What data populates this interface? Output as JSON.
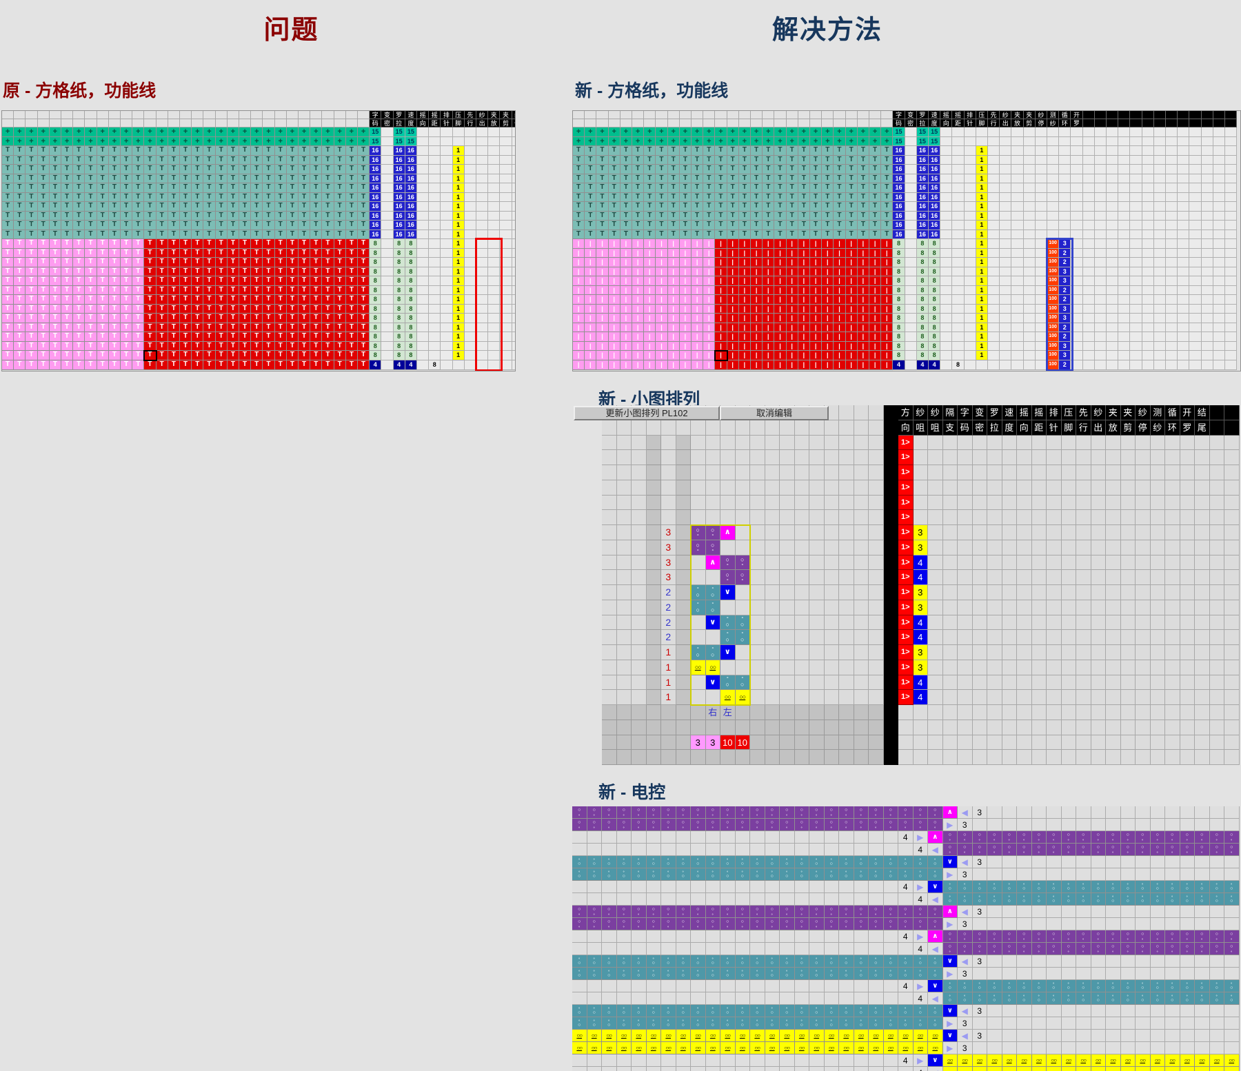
{
  "titles": {
    "problem": "问题",
    "solution": "解决方法"
  },
  "section_labels": {
    "old_grid": "原 - 方格纸，功能线",
    "new_grid": "新 - 方格纸，功能线",
    "arrange": "新 - 小图排列",
    "control": "新 - 电控"
  },
  "toolbar": {
    "update": "更新小图排列 PL102",
    "cancel": "取消编辑"
  },
  "func_headers": [
    "字码",
    "变密",
    "罗拉",
    "速度",
    "摇向",
    "摇距",
    "排针",
    "压脚",
    "先行",
    "纱出",
    "夹放",
    "夹剪",
    "纱停",
    "测纱",
    "循环",
    "开罗"
  ],
  "arrange_headers": [
    "方向",
    "纱咀",
    "纱咀",
    "隔支",
    "字码",
    "变密",
    "罗拉",
    "速度",
    "摇向",
    "摇距",
    "排针",
    "压脚",
    "先行",
    "纱出",
    "夹放",
    "夹剪",
    "纱停",
    "测纱",
    "循环",
    "开罗",
    "结尾"
  ],
  "grid_values": {
    "plus": "15",
    "knit": "16",
    "tuck": "8",
    "presser": "1",
    "last": "4",
    "measure": "8"
  },
  "symbols": {
    "plus": "+",
    "knit": "T",
    "bar": "|",
    "ring_big": "○",
    "ring_small": "∘",
    "tuck_up": "∧",
    "tuck_down": "∨",
    "yellow_pair": "○○",
    "tri_left": "◀",
    "tri_right": "▶"
  },
  "old_grid": {
    "pattern_cols": 31,
    "red_start_col": 13,
    "func_cols_visible": 13,
    "annotation_col": 10,
    "bottom_symbol": "T"
  },
  "new_grid": {
    "pattern_cols": 27,
    "red_start_col": 13,
    "func_cols_visible": 29,
    "annotation_col": 14,
    "bottom_symbol": "|",
    "loop_left": "100",
    "loop_right": [
      "3",
      "2",
      "2",
      "3",
      "3",
      "2",
      "2",
      "3",
      "3",
      "2",
      "2",
      "3",
      "3",
      "2"
    ]
  },
  "arrange": {
    "dir": "1>",
    "plain_dir_rows": 6,
    "yarn": [
      "3",
      "3",
      "4",
      "4",
      "3",
      "3",
      "4",
      "4",
      "3",
      "3",
      "4",
      "4"
    ],
    "row_labels": [
      "3",
      "3",
      "3",
      "3",
      "2",
      "2",
      "2",
      "2",
      "1",
      "1",
      "1",
      "1"
    ],
    "pattern": [
      "PPM.",
      "PP..",
      ".MPP",
      "..PP",
      "TTB.",
      "TT..",
      ".BTT",
      "..TT",
      "TTB.",
      "YY..",
      ".BTT",
      "..YY"
    ],
    "footer_right": "右",
    "footer_left": "左",
    "counts": [
      "3",
      "3",
      "10",
      "10"
    ]
  },
  "control": {
    "bands": [
      [
        "L",
        "P"
      ],
      [
        "R",
        "P"
      ],
      [
        "L",
        "T"
      ],
      [
        "R",
        "T"
      ],
      [
        "L",
        "P"
      ],
      [
        "R",
        "P"
      ],
      [
        "L",
        "T"
      ],
      [
        "R",
        "T"
      ],
      [
        "L",
        "T"
      ],
      [
        "L",
        "Y"
      ],
      [
        "R",
        "Y"
      ]
    ],
    "left_num": "3",
    "right_num": "4"
  },
  "palette": {
    "title_problem": "#8B0000",
    "title_solution": "#17375D",
    "plus_bg": "#00BE8E",
    "knit_bg": "#7CBDB5",
    "pink_bg": "#FF9CF0",
    "red_bg": "#E10000",
    "plus_fg": "#0B4F3F",
    "knit_fg": "#1C4840",
    "bottom_fg": "#FFFFFF",
    "v15_bg": "#00C9A4",
    "v15_fg": "#003355",
    "v16_bg": "#2222CC",
    "v16_fg": "#FFFFFF",
    "v8_bg": "#D2E6D2",
    "v8_fg": "#1A5C1A",
    "v1_bg": "#FFFF00",
    "v1_fg": "#000000",
    "v4_bg": "#000099",
    "v4_fg": "#FFFFFF",
    "loop_left_bg": "#FF3C00",
    "loop_right_bg": "#2222CC",
    "purple": "#7B3FA0",
    "teal": "#4E98A8",
    "yellow": "#FFFF00",
    "magenta": "#FF00FF",
    "blue": "#0000EE",
    "tri": "#9B9BF2",
    "dir_bg": "#FF0000",
    "label_red": "#CC0000",
    "label_blue": "#3333CC",
    "count_pink": "#FF99FF",
    "count_red": "#EE0000",
    "annotation_red": "#EE0000",
    "annotation_blue": "#3344CC",
    "cell_light": "#DCDCDC",
    "cell_dark": "#C4C4C4",
    "cell_border": "#A8A8A8",
    "func_empty": "#EBEBEB",
    "black": "#000000"
  }
}
